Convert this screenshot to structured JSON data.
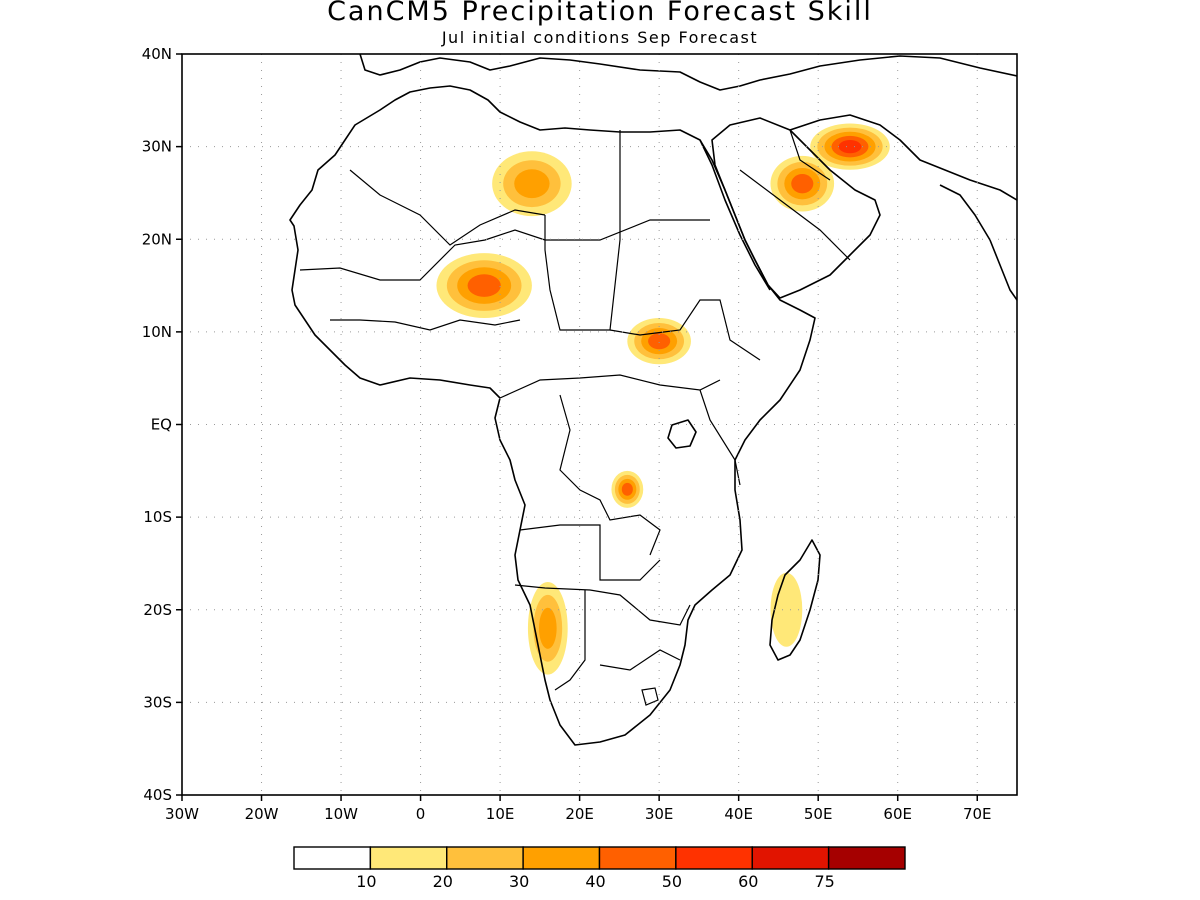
{
  "title": "CanCM5 Precipitation Forecast Skill",
  "subtitle": "Jul initial conditions   Sep Forecast",
  "map": {
    "region": "Africa",
    "lon_range": [
      -30,
      75
    ],
    "lat_range": [
      -40,
      40
    ],
    "gridlines": "dotted",
    "lat_ticks": [
      {
        "value": 40,
        "label": "40N"
      },
      {
        "value": 30,
        "label": "30N"
      },
      {
        "value": 20,
        "label": "20N"
      },
      {
        "value": 10,
        "label": "10N"
      },
      {
        "value": 0,
        "label": "EQ"
      },
      {
        "value": -10,
        "label": "10S"
      },
      {
        "value": -20,
        "label": "20S"
      },
      {
        "value": -30,
        "label": "30S"
      },
      {
        "value": -40,
        "label": "40S"
      }
    ],
    "lon_ticks": [
      {
        "value": -30,
        "label": "30W"
      },
      {
        "value": -20,
        "label": "20W"
      },
      {
        "value": -10,
        "label": "10W"
      },
      {
        "value": 0,
        "label": "0"
      },
      {
        "value": 10,
        "label": "10E"
      },
      {
        "value": 20,
        "label": "20E"
      },
      {
        "value": 30,
        "label": "30E"
      },
      {
        "value": 40,
        "label": "40E"
      },
      {
        "value": 50,
        "label": "50E"
      },
      {
        "value": 60,
        "label": "60E"
      },
      {
        "value": 70,
        "label": "70E"
      }
    ],
    "skill_regions": [
      {
        "name": "sahara-libya",
        "lon": 14,
        "lat": 26,
        "rx": 5,
        "ry": 3.5,
        "level": 3
      },
      {
        "name": "sahel-niger-nigeria",
        "lon": 8,
        "lat": 15,
        "rx": 6,
        "ry": 3.5,
        "level": 4
      },
      {
        "name": "south-sudan",
        "lon": 30,
        "lat": 9,
        "rx": 4,
        "ry": 2.5,
        "level": 4
      },
      {
        "name": "arabia",
        "lon": 48,
        "lat": 26,
        "rx": 4,
        "ry": 3,
        "level": 4
      },
      {
        "name": "iran",
        "lon": 54,
        "lat": 30,
        "rx": 5,
        "ry": 2.5,
        "level": 5
      },
      {
        "name": "congo-east",
        "lon": 26,
        "lat": -7,
        "rx": 2,
        "ry": 2,
        "level": 4
      },
      {
        "name": "namibia",
        "lon": 16,
        "lat": -22,
        "rx": 2.5,
        "ry": 5,
        "level": 3
      },
      {
        "name": "madagascar",
        "lon": 46,
        "lat": -20,
        "rx": 2,
        "ry": 4,
        "level": 1
      }
    ]
  },
  "colorbar": {
    "colors": [
      "#ffffff",
      "#ffe878",
      "#ffc03c",
      "#ffa000",
      "#ff6000",
      "#ff3200",
      "#e11400",
      "#a50000"
    ],
    "labels": [
      "10",
      "20",
      "30",
      "40",
      "50",
      "60",
      "75"
    ]
  }
}
